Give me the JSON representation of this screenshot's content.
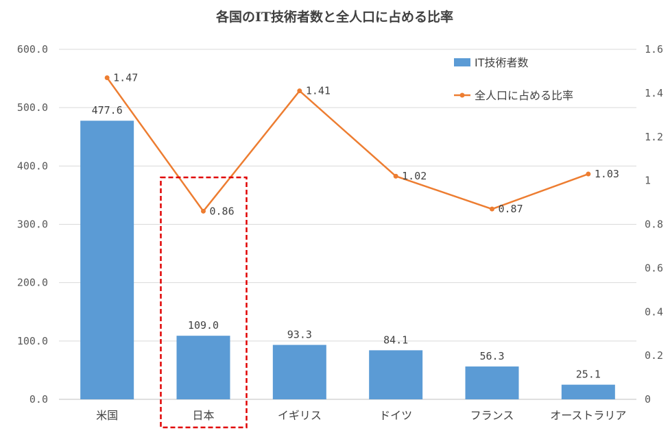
{
  "chart_data": {
    "type": "bar",
    "title": "各国のIT技術者数と全人口に占める比率",
    "categories": [
      "米国",
      "日本",
      "イギリス",
      "ドイツ",
      "フランス",
      "オーストラリア"
    ],
    "series": [
      {
        "name": "IT技術者数",
        "type": "bar",
        "axis": "left",
        "color": "#5B9BD5",
        "values": [
          477.6,
          109.0,
          93.3,
          84.1,
          56.3,
          25.1
        ],
        "labels": [
          "477.6",
          "109.0",
          "93.3",
          "84.1",
          "56.3",
          "25.1"
        ]
      },
      {
        "name": "全人口に占める比率",
        "type": "line",
        "axis": "right",
        "color": "#ED7D31",
        "values": [
          1.47,
          0.86,
          1.41,
          1.02,
          0.87,
          1.03
        ],
        "labels": [
          "1.47",
          "0.86",
          "1.41",
          "1.02",
          "0.87",
          "1.03"
        ]
      }
    ],
    "y_left": {
      "ylim": [
        0,
        600
      ],
      "ticks": [
        "0.0",
        "100.0",
        "200.0",
        "300.0",
        "400.0",
        "500.0",
        "600.0"
      ]
    },
    "y_right": {
      "ylim": [
        0,
        1.6
      ],
      "ticks": [
        "0",
        "0.2",
        "0.4",
        "0.6",
        "0.8",
        "1",
        "1.2",
        "1.4",
        "1.6"
      ]
    },
    "grid": true,
    "legend_position": "top-right",
    "highlight": {
      "category": "日本",
      "style": "dashed-box",
      "color": "#E00000"
    }
  }
}
